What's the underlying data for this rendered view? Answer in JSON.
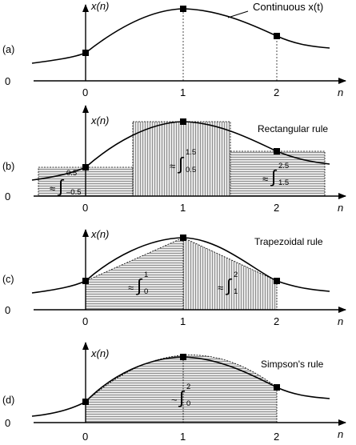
{
  "panels": [
    {
      "id": "a",
      "panel_label": "(a)",
      "y_axis_label": "x(n)",
      "x_axis_label": "n",
      "origin_label": "0",
      "ticks": [
        "0",
        "1",
        "2"
      ],
      "annotation": "Continuous x(t)",
      "method": "continuous"
    },
    {
      "id": "b",
      "panel_label": "(b)",
      "y_axis_label": "x(n)",
      "x_axis_label": "n",
      "origin_label": "0",
      "ticks": [
        "0",
        "1",
        "2"
      ],
      "annotation": "Rectangular rule",
      "method": "rectangular",
      "integrals": [
        {
          "approx": "≈",
          "lower": "–0.5",
          "upper": "0.5"
        },
        {
          "approx": "≈",
          "lower": "0.5",
          "upper": "1.5"
        },
        {
          "approx": "≈",
          "lower": "1.5",
          "upper": "2.5"
        }
      ]
    },
    {
      "id": "c",
      "panel_label": "(c)",
      "y_axis_label": "x(n)",
      "x_axis_label": "n",
      "origin_label": "0",
      "ticks": [
        "0",
        "1",
        "2"
      ],
      "annotation": "Trapezoidal rule",
      "method": "trapezoidal",
      "integrals": [
        {
          "approx": "≈",
          "lower": "0",
          "upper": "1"
        },
        {
          "approx": "≈",
          "lower": "1",
          "upper": "2"
        }
      ]
    },
    {
      "id": "d",
      "panel_label": "(d)",
      "y_axis_label": "x(n)",
      "x_axis_label": "n",
      "origin_label": "0",
      "ticks": [
        "0",
        "1",
        "2"
      ],
      "annotation": "Simpson's rule",
      "method": "simpson",
      "integrals": [
        {
          "approx": "~",
          "lower": "0",
          "upper": "2"
        }
      ]
    }
  ],
  "colors": {
    "ink": "#000000",
    "fill": "#e6e6e6",
    "hatch": "#555555"
  }
}
